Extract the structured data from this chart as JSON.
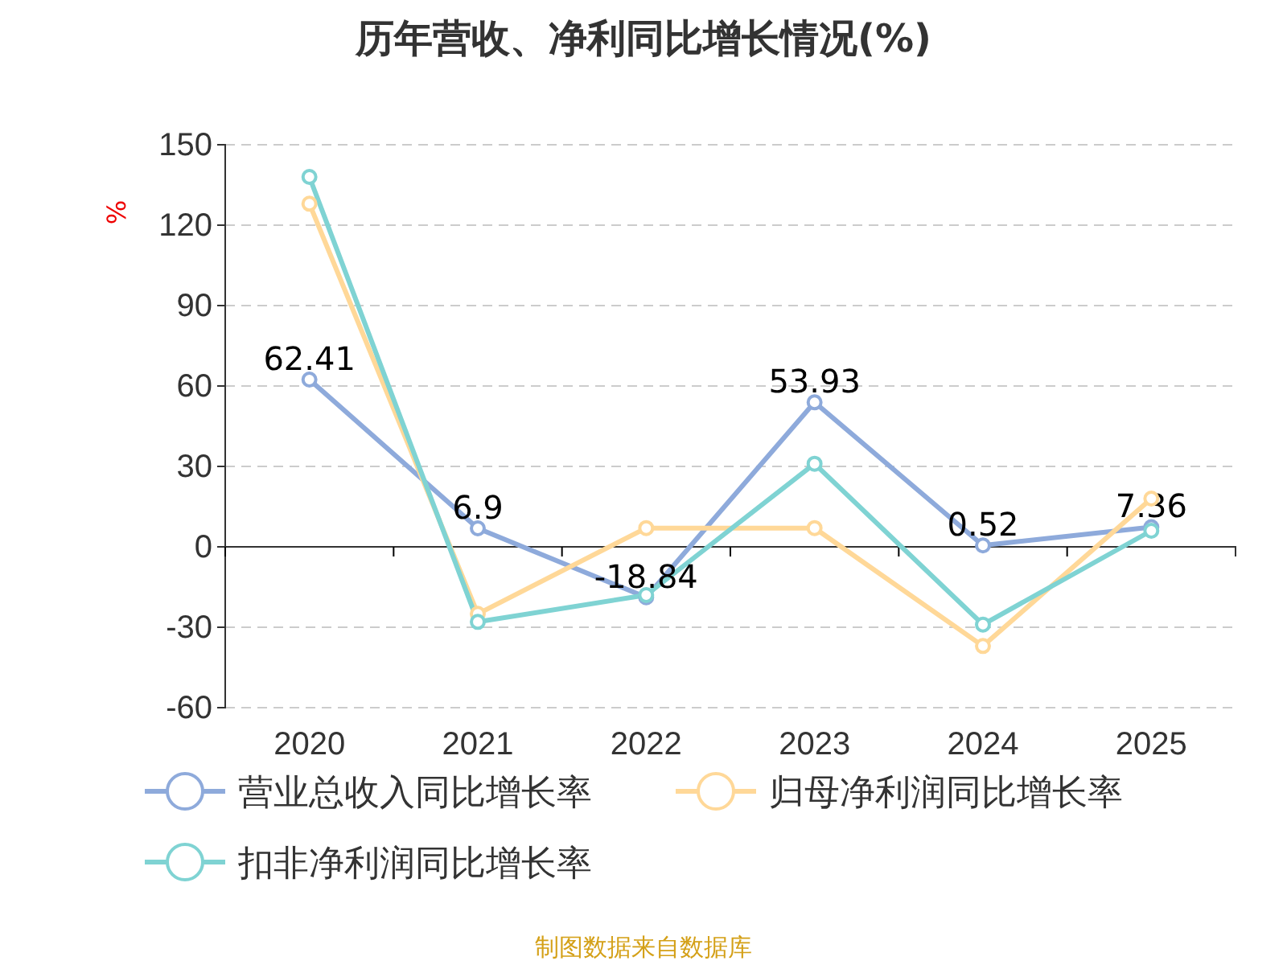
{
  "chart_data": {
    "type": "line",
    "title": "历年营收、净利同比增长情况(%)",
    "ylabel": "%",
    "categories": [
      "2020",
      "2021",
      "2022",
      "2023",
      "2024",
      "2025"
    ],
    "series": [
      {
        "name": "营业总收入同比增长率",
        "color": "#8eaadb",
        "values": [
          62.41,
          6.9,
          -18.84,
          53.93,
          0.52,
          7.36
        ],
        "value_labels": [
          "62.41",
          "6.9",
          "-18.84",
          "53.93",
          "0.52",
          "7.36"
        ]
      },
      {
        "name": "归母净利润同比增长率",
        "color": "#ffd898",
        "values": [
          128,
          -25,
          7,
          7,
          -37,
          18
        ]
      },
      {
        "name": "扣非净利润同比增长率",
        "color": "#7fd3d3",
        "values": [
          138,
          -28,
          -18,
          31,
          -29,
          6
        ]
      }
    ],
    "ylim": [
      -60,
      150
    ],
    "yticks": [
      -60,
      -30,
      0,
      30,
      60,
      90,
      120,
      150
    ],
    "grid": "y",
    "legend": "bottom",
    "marker": "circle",
    "line_style": "solid",
    "annotations": [
      "制图数据来自数据库"
    ]
  }
}
